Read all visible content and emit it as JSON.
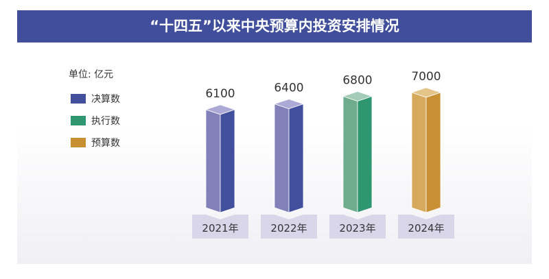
{
  "chart_data": {
    "type": "bar",
    "title": "“十四五”以来中央预算内投资安排情况",
    "unit": "单位: 亿元",
    "categories": [
      "2021年",
      "2022年",
      "2023年",
      "2024年"
    ],
    "values": [
      6100,
      6400,
      6800,
      7000
    ],
    "status": [
      "决算数",
      "决算数",
      "执行数",
      "预算数"
    ],
    "legend": [
      {
        "label": "决算数",
        "color": "#414f9c"
      },
      {
        "label": "执行数",
        "color": "#2e9670"
      },
      {
        "label": "预算数",
        "color": "#c98f33"
      }
    ],
    "legend_position": "left",
    "grid": false,
    "colors": {
      "决算数": {
        "left": "#8280b8",
        "right": "#414f9c",
        "top": "#ada9d6"
      },
      "执行数": {
        "left": "#6fac8d",
        "right": "#2e9670",
        "top": "#a3cbb5"
      },
      "预算数": {
        "left": "#d6a95c",
        "right": "#c98f33",
        "top": "#e4c489"
      }
    }
  }
}
